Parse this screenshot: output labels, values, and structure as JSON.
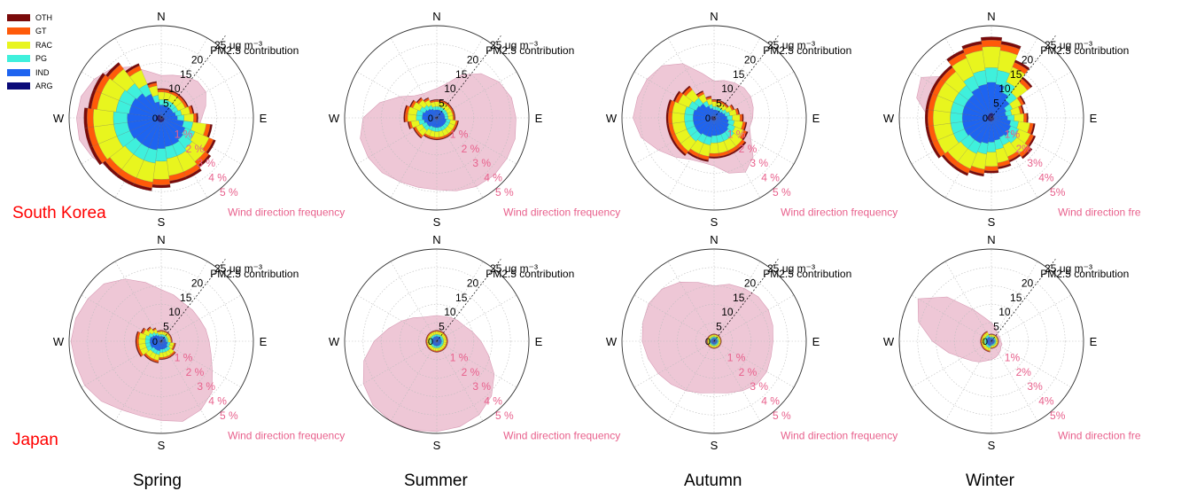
{
  "legend": [
    {
      "name": "OTH",
      "color": "#7a0a0a"
    },
    {
      "name": "GT",
      "color": "#ff5a0a"
    },
    {
      "name": "RAC",
      "color": "#e8f51e"
    },
    {
      "name": "PG",
      "color": "#3ff0dc"
    },
    {
      "name": "IND",
      "color": "#1e64f0"
    },
    {
      "name": "ARG",
      "color": "#0a0a78"
    }
  ],
  "row_labels": [
    "South Korea",
    "Japan"
  ],
  "column_labels": [
    "Spring",
    "Summer",
    "Autumn",
    "Winter"
  ],
  "polar": {
    "compass": [
      "N",
      "E",
      "S",
      "W"
    ],
    "radial_ticks": [
      "0",
      "5",
      "10",
      "15",
      "20",
      "25 μg m⁻³"
    ],
    "contribution_label": "PM2.5 contribution",
    "frequency_ticks": [
      "1 %",
      "2 %",
      "3 %",
      "4 %",
      "5 %"
    ],
    "frequency_ticks_winter": [
      "1%",
      "2%",
      "3%",
      "4%",
      "5%"
    ],
    "frequency_label": "Wind direction frequency",
    "frequency_label_winter": "Wind direction fre",
    "frequency_color": "#e8608c",
    "rose_fill": "#e8b4c8"
  },
  "chart_data": [
    {
      "type": "polar-stacked-bar",
      "region": "South Korea",
      "season": "Spring",
      "radial_unit": "μg m⁻³",
      "r_max": 25,
      "directions_deg": [
        0,
        15,
        30,
        45,
        60,
        75,
        90,
        105,
        120,
        135,
        150,
        165,
        180,
        195,
        210,
        225,
        240,
        255,
        270,
        285,
        300,
        315,
        330,
        345
      ],
      "total_pm25": [
        8,
        8,
        8,
        8,
        8,
        9,
        10,
        14,
        16,
        17,
        18,
        18,
        19,
        20,
        20,
        20,
        21,
        21,
        21,
        20,
        20,
        19,
        16,
        10
      ],
      "wind_freq_pct": [
        2.3,
        2.4,
        2.6,
        2.8,
        2.8,
        2.5,
        2.2,
        2.1,
        2.3,
        2.5,
        2.8,
        3.2,
        3.4,
        3.4,
        3.6,
        3.9,
        4.3,
        4.6,
        4.6,
        4.5,
        4.2,
        3.8,
        3.2,
        2.6
      ]
    },
    {
      "type": "polar-stacked-bar",
      "region": "South Korea",
      "season": "Summer",
      "radial_unit": "μg m⁻³",
      "r_max": 25,
      "directions_deg": [
        0,
        15,
        30,
        45,
        60,
        75,
        90,
        105,
        120,
        135,
        150,
        165,
        180,
        195,
        210,
        225,
        240,
        255,
        270,
        285,
        300,
        315,
        330,
        345
      ],
      "total_pm25": [
        5,
        5,
        5,
        5,
        5,
        5,
        5,
        6,
        6,
        6,
        6,
        6,
        6,
        6,
        6,
        7,
        7,
        8,
        9,
        9,
        8,
        7,
        6,
        5
      ],
      "wind_freq_pct": [
        1.6,
        1.9,
        2.7,
        3.4,
        3.9,
        4.2,
        4.3,
        4.4,
        4.4,
        4.4,
        4.3,
        4.1,
        3.9,
        3.9,
        4.0,
        4.2,
        4.3,
        4.3,
        4.0,
        3.2,
        2.3,
        1.7,
        1.5,
        1.5
      ]
    },
    {
      "type": "polar-stacked-bar",
      "region": "South Korea",
      "season": "Autumn",
      "radial_unit": "μg m⁻³",
      "r_max": 25,
      "directions_deg": [
        0,
        15,
        30,
        45,
        60,
        75,
        90,
        105,
        120,
        135,
        150,
        165,
        180,
        195,
        210,
        225,
        240,
        255,
        270,
        285,
        300,
        315,
        330,
        345
      ],
      "total_pm25": [
        5,
        5,
        5,
        5,
        6,
        7,
        8,
        9,
        10,
        11,
        11,
        11,
        11,
        12,
        12,
        13,
        13,
        13,
        13,
        13,
        12,
        11,
        8,
        6
      ],
      "wind_freq_pct": [
        2.0,
        2.1,
        2.2,
        2.3,
        2.3,
        2.2,
        2.1,
        2.0,
        2.3,
        3.0,
        3.4,
        3.1,
        2.6,
        2.5,
        2.6,
        3.0,
        3.5,
        4.1,
        4.4,
        4.3,
        4.2,
        4.0,
        3.4,
        2.5
      ]
    },
    {
      "type": "polar-stacked-bar",
      "region": "South Korea",
      "season": "Winter",
      "radial_unit": "μg m⁻³",
      "r_max": 25,
      "directions_deg": [
        0,
        15,
        30,
        45,
        60,
        75,
        90,
        105,
        120,
        135,
        150,
        165,
        180,
        195,
        210,
        225,
        240,
        255,
        270,
        285,
        300,
        315,
        330,
        345
      ],
      "total_pm25": [
        22,
        21,
        17,
        14,
        10,
        9,
        10,
        12,
        13,
        14,
        13,
        14,
        15,
        16,
        17,
        17,
        18,
        18,
        18,
        18,
        18,
        18,
        20,
        21
      ],
      "wind_freq_pct": [
        1.3,
        1.1,
        1.0,
        0.9,
        0.8,
        0.8,
        0.8,
        0.9,
        1.0,
        1.2,
        1.3,
        1.4,
        1.5,
        1.6,
        1.8,
        2.1,
        2.4,
        2.9,
        3.4,
        4.2,
        4.4,
        3.2,
        2.2,
        1.6
      ]
    },
    {
      "type": "polar-stacked-bar",
      "region": "Japan",
      "season": "Spring",
      "radial_unit": "μg m⁻³",
      "r_max": 25,
      "directions_deg": [
        0,
        15,
        30,
        45,
        60,
        75,
        90,
        105,
        120,
        135,
        150,
        165,
        180,
        195,
        210,
        225,
        240,
        255,
        270,
        285,
        300,
        315,
        330,
        345
      ],
      "total_pm25": [
        3,
        3,
        3,
        3,
        3,
        3,
        3,
        4,
        4,
        5,
        5,
        5,
        5,
        6,
        6,
        6,
        7,
        7,
        7,
        7,
        6,
        5,
        4,
        3
      ],
      "wind_freq_pct": [
        2.8,
        2.6,
        2.4,
        2.4,
        2.4,
        2.5,
        2.6,
        2.8,
        3.2,
        3.9,
        4.3,
        4.5,
        4.3,
        4.2,
        4.3,
        4.6,
        4.8,
        4.8,
        4.9,
        4.8,
        4.6,
        4.4,
        3.9,
        3.3
      ]
    },
    {
      "type": "polar-stacked-bar",
      "region": "Japan",
      "season": "Summer",
      "radial_unit": "μg m⁻³",
      "r_max": 25,
      "directions_deg": [
        0,
        15,
        30,
        45,
        60,
        75,
        90,
        105,
        120,
        135,
        150,
        165,
        180,
        195,
        210,
        225,
        240,
        255,
        270,
        285,
        300,
        315,
        330,
        345
      ],
      "total_pm25": [
        3,
        3,
        3,
        3,
        3,
        3,
        3,
        3,
        3,
        3,
        3,
        3,
        3,
        3,
        3,
        3,
        3,
        3,
        3,
        3,
        3,
        3,
        3,
        3
      ],
      "wind_freq_pct": [
        1.4,
        1.4,
        1.5,
        1.6,
        1.7,
        2.0,
        2.4,
        2.9,
        3.6,
        4.2,
        4.6,
        4.8,
        4.9,
        5.0,
        5.0,
        4.9,
        4.6,
        4.1,
        3.4,
        2.7,
        2.2,
        1.8,
        1.5,
        1.4
      ]
    },
    {
      "type": "polar-stacked-bar",
      "region": "Japan",
      "season": "Autumn",
      "radial_unit": "μg m⁻³",
      "r_max": 25,
      "directions_deg": [
        0,
        15,
        30,
        45,
        60,
        75,
        90,
        105,
        120,
        135,
        150,
        165,
        180,
        195,
        210,
        225,
        240,
        255,
        270,
        285,
        300,
        315,
        330,
        345
      ],
      "total_pm25": [
        2,
        2,
        2,
        2,
        2,
        2,
        2,
        2,
        2,
        2,
        2,
        2,
        2,
        2,
        2,
        2,
        2,
        2,
        2,
        2,
        2,
        2,
        2,
        2
      ],
      "wind_freq_pct": [
        3.0,
        3.2,
        3.3,
        3.4,
        3.4,
        3.3,
        3.2,
        3.2,
        3.3,
        3.3,
        3.1,
        2.9,
        2.8,
        2.9,
        3.1,
        3.3,
        3.5,
        3.7,
        3.9,
        4.0,
        4.1,
        4.0,
        3.7,
        3.3
      ]
    },
    {
      "type": "polar-stacked-bar",
      "region": "Japan",
      "season": "Winter",
      "radial_unit": "μg m⁻³",
      "r_max": 25,
      "directions_deg": [
        0,
        15,
        30,
        45,
        60,
        75,
        90,
        105,
        120,
        135,
        150,
        165,
        180,
        195,
        210,
        225,
        240,
        255,
        270,
        285,
        300,
        315,
        330,
        345
      ],
      "total_pm25": [
        2,
        2,
        2,
        2,
        2,
        2,
        2,
        2,
        2,
        2,
        2,
        2,
        2,
        3,
        3,
        3,
        3,
        3,
        3,
        3,
        3,
        3,
        3,
        2
      ],
      "wind_freq_pct": [
        1.0,
        0.8,
        0.6,
        0.5,
        0.5,
        0.5,
        0.5,
        0.6,
        0.6,
        0.7,
        0.8,
        0.9,
        1.0,
        1.1,
        1.3,
        1.5,
        1.8,
        2.4,
        3.2,
        4.1,
        4.6,
        3.4,
        2.0,
        1.3
      ]
    }
  ]
}
